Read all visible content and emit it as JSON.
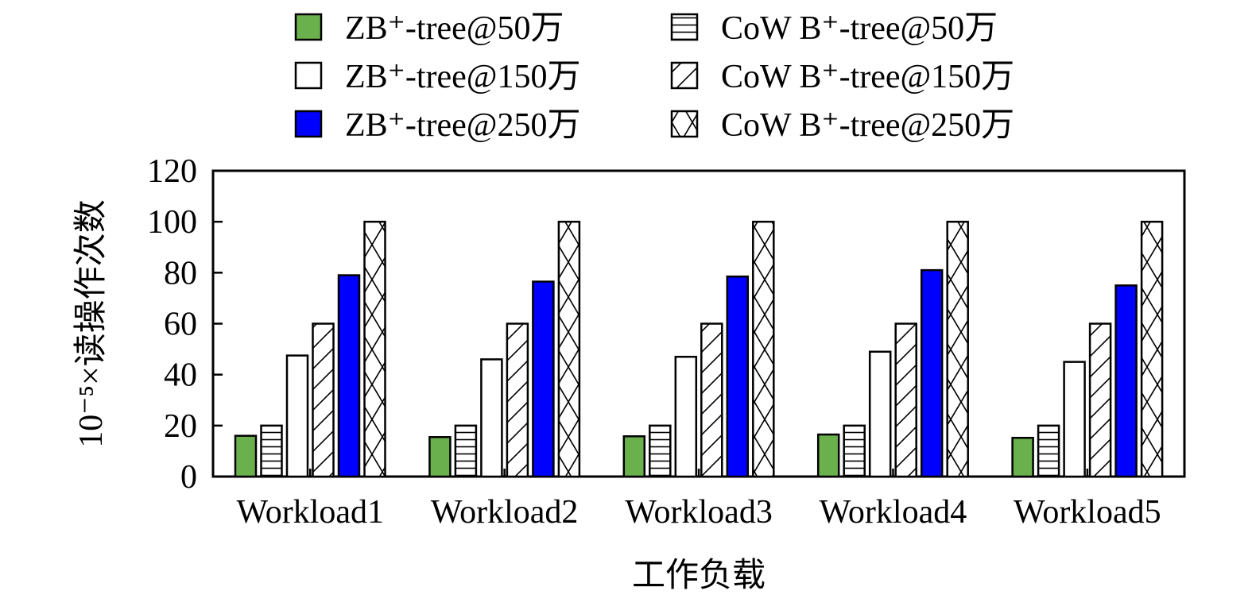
{
  "chart_data": {
    "type": "bar",
    "categories": [
      "Workload1",
      "Workload2",
      "Workload3",
      "Workload4",
      "Workload5"
    ],
    "series": [
      {
        "name": "ZB⁺-tree@50万",
        "fill": "#6ab04c",
        "pattern": "solid",
        "values": [
          16,
          15.5,
          15.8,
          16.5,
          15.2
        ]
      },
      {
        "name": "CoW B⁺-tree@50万",
        "fill": "#ffffff",
        "pattern": "hlines",
        "values": [
          20,
          20,
          20,
          20,
          20
        ]
      },
      {
        "name": "ZB⁺-tree@150万",
        "fill": "#ffffff",
        "pattern": "none",
        "values": [
          47.5,
          46,
          47,
          49,
          45
        ]
      },
      {
        "name": "CoW B⁺-tree@150万",
        "fill": "#ffffff",
        "pattern": "diag",
        "values": [
          60,
          60,
          60,
          60,
          60
        ]
      },
      {
        "name": "ZB⁺-tree@250万",
        "fill": "#0000ff",
        "pattern": "solid",
        "values": [
          79,
          76.5,
          78.5,
          81,
          75
        ]
      },
      {
        "name": "CoW B⁺-tree@250万",
        "fill": "#ffffff",
        "pattern": "cross",
        "values": [
          100,
          100,
          100,
          100,
          100
        ]
      }
    ],
    "yticks": [
      0,
      20,
      40,
      60,
      80,
      100,
      120
    ],
    "ylim": [
      0,
      120
    ],
    "ylabel": "10⁻⁵×读操作次数",
    "xlabel": "工作负载",
    "legend_position": "top",
    "grid": false
  }
}
